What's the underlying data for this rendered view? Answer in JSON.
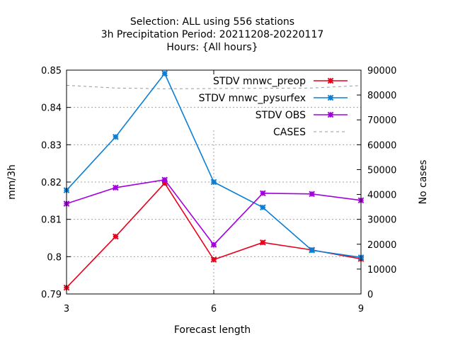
{
  "chart_data": {
    "type": "line",
    "title_lines": [
      "Selection: ALL using   556 stations",
      "3h Precipitation    Period: 20211208-20220117",
      "Hours: {All hours}"
    ],
    "xlabel": "Forecast length",
    "ylabel": "mm/3h",
    "y2label": "No cases",
    "xlim": [
      3,
      9
    ],
    "ylim": [
      0.79,
      0.85
    ],
    "y2lim": [
      0,
      90000
    ],
    "xticks": [
      3,
      6,
      9
    ],
    "yticks": [
      0.79,
      0.8,
      0.81,
      0.82,
      0.83,
      0.84,
      0.85
    ],
    "ytick_labels": [
      "0.79",
      "0.8",
      "0.81",
      "0.82",
      "0.83",
      "0.84",
      "0.85"
    ],
    "y2ticks": [
      0,
      10000,
      20000,
      30000,
      40000,
      50000,
      60000,
      70000,
      80000,
      90000
    ],
    "grid": true,
    "legend_position": "top-right",
    "series": [
      {
        "name": "STDV mnwc_preop",
        "axis": "y",
        "color": "#e8001c",
        "marker": "star",
        "x": [
          3,
          4,
          5,
          6,
          7,
          8,
          9
        ],
        "values": [
          0.7917,
          0.8054,
          0.8197,
          0.7992,
          0.8038,
          0.8018,
          0.7994
        ]
      },
      {
        "name": "STDV mnwc_pysurfex",
        "axis": "y",
        "color": "#0c7ed4",
        "marker": "star",
        "x": [
          3,
          4,
          5,
          6,
          7,
          8,
          9
        ],
        "values": [
          0.8178,
          0.8321,
          0.8491,
          0.82,
          0.8132,
          0.8017,
          0.7998
        ]
      },
      {
        "name": "STDV OBS",
        "axis": "y",
        "color": "#a300e0",
        "marker": "star",
        "x": [
          3,
          4,
          5,
          6,
          7,
          8,
          9
        ],
        "values": [
          0.8142,
          0.8185,
          0.8206,
          0.8032,
          0.817,
          0.8168,
          0.8151
        ]
      },
      {
        "name": "CASES",
        "axis": "y2",
        "color": "#999999",
        "marker": "none",
        "dashed": true,
        "x": [
          3,
          4,
          5,
          6,
          7,
          8,
          9
        ],
        "values": [
          83900,
          82800,
          82500,
          82600,
          82700,
          82800,
          83800
        ]
      }
    ]
  }
}
